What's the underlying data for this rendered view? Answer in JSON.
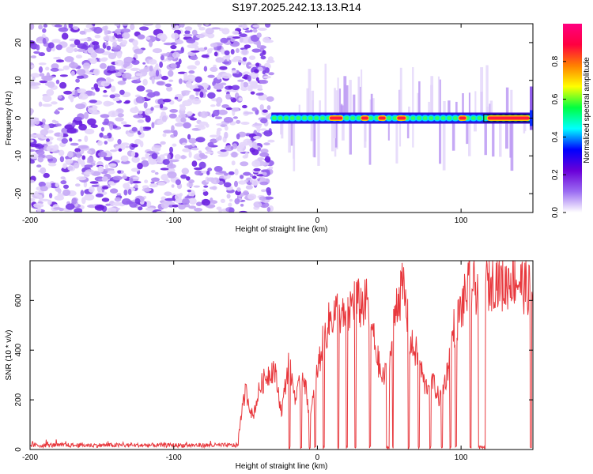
{
  "title": "S197.2025.242.13.13.R14",
  "chart_data": [
    {
      "type": "heatmap",
      "xlabel": "Height of straight line (km)",
      "ylabel": "Frequency (Hz)",
      "xlim": [
        -200,
        150
      ],
      "ylim": [
        -25,
        25
      ],
      "xticks": [
        -200,
        -100,
        0,
        100
      ],
      "yticks": [
        -20,
        -10,
        0,
        10,
        20
      ],
      "colorbar": {
        "label": "Normalized spectral amplitude",
        "range": [
          0,
          1
        ],
        "ticks": [
          "0.0",
          "0.2",
          "0.4",
          "0.6",
          "0.8"
        ],
        "colors": [
          "#ffffff",
          "#9b6cf2",
          "#6a00d8",
          "#0000ff",
          "#00ffff",
          "#00ff40",
          "#ffff00",
          "#ff8000",
          "#ff0040",
          "#ff0080"
        ]
      },
      "noise_region_km": [
        -200,
        -32
      ],
      "signal_frequency_hz": 0,
      "signal_region_km": [
        -32,
        150
      ],
      "strong_signal_segments_km": [
        [
          8,
          18
        ],
        [
          30,
          36
        ],
        [
          42,
          48
        ],
        [
          55,
          62
        ],
        [
          98,
          104
        ],
        [
          118,
          148
        ]
      ],
      "grid": false
    },
    {
      "type": "line",
      "xlabel": "Height of straight line (km)",
      "ylabel": "SNR (10 * v/v)",
      "xlim": [
        -200,
        150
      ],
      "ylim": [
        0,
        760
      ],
      "xticks": [
        -200,
        -100,
        0,
        100
      ],
      "yticks": [
        0,
        200,
        400,
        600
      ],
      "color": "#e8383d",
      "series": [
        {
          "x": [
            -200,
            -190,
            -180,
            -170,
            -160,
            -150,
            -140,
            -130,
            -120,
            -110,
            -100,
            -90,
            -80,
            -70,
            -60,
            -55,
            -50,
            -45,
            -40,
            -35,
            -30,
            -25,
            -20,
            -15,
            -10,
            -5,
            0,
            5,
            10,
            15,
            20,
            25,
            30,
            35,
            40,
            45,
            50,
            55,
            60,
            65,
            70,
            75,
            80,
            85,
            90,
            95,
            100,
            105,
            110,
            115,
            120,
            125,
            130,
            135,
            140,
            145,
            150
          ],
          "y": [
            15,
            18,
            12,
            16,
            14,
            17,
            13,
            15,
            16,
            14,
            15,
            13,
            14,
            16,
            18,
            60,
            240,
            130,
            250,
            300,
            330,
            150,
            350,
            200,
            320,
            120,
            320,
            460,
            540,
            560,
            500,
            610,
            580,
            590,
            420,
            280,
            330,
            600,
            650,
            420,
            380,
            250,
            280,
            200,
            300,
            490,
            560,
            650,
            650,
            680,
            660,
            700,
            650,
            700,
            680,
            650,
            640
          ]
        }
      ],
      "grid": false
    }
  ]
}
